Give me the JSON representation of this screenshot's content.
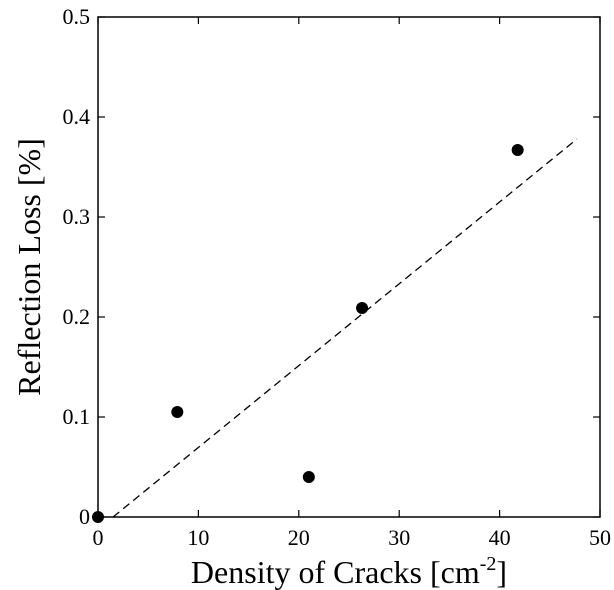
{
  "chart_data": {
    "type": "scatter",
    "title": "",
    "xlabel": "Density of Cracks [cm",
    "xlabel_superscript": "-2",
    "xlabel_suffix": "]",
    "ylabel": "Reflection Loss [%]",
    "xlim": [
      0,
      50
    ],
    "ylim": [
      0,
      0.5
    ],
    "xticks": [
      0,
      10,
      20,
      30,
      40,
      50
    ],
    "yticks": [
      0,
      0.1,
      0.2,
      0.3,
      0.4,
      0.5
    ],
    "xtick_labels": [
      "0",
      "10",
      "20",
      "30",
      "40",
      "50"
    ],
    "ytick_labels": [
      "0",
      "0.1",
      "0.2",
      "0.3",
      "0.4",
      "0.5"
    ],
    "grid": false,
    "legend": "none",
    "series": [
      {
        "points": [
          {
            "x": 0,
            "y": 0
          },
          {
            "x": 7.9,
            "y": 0.105
          },
          {
            "x": 21.0,
            "y": 0.04
          },
          {
            "x": 26.3,
            "y": 0.209
          },
          {
            "x": 41.8,
            "y": 0.367
          }
        ],
        "color": "#000000"
      }
    ],
    "fit_line": {
      "style": "dashed",
      "color": "#000000",
      "points": [
        {
          "x": 1.5,
          "y": 0
        },
        {
          "x": 47.7,
          "y": 0.378
        }
      ]
    }
  }
}
